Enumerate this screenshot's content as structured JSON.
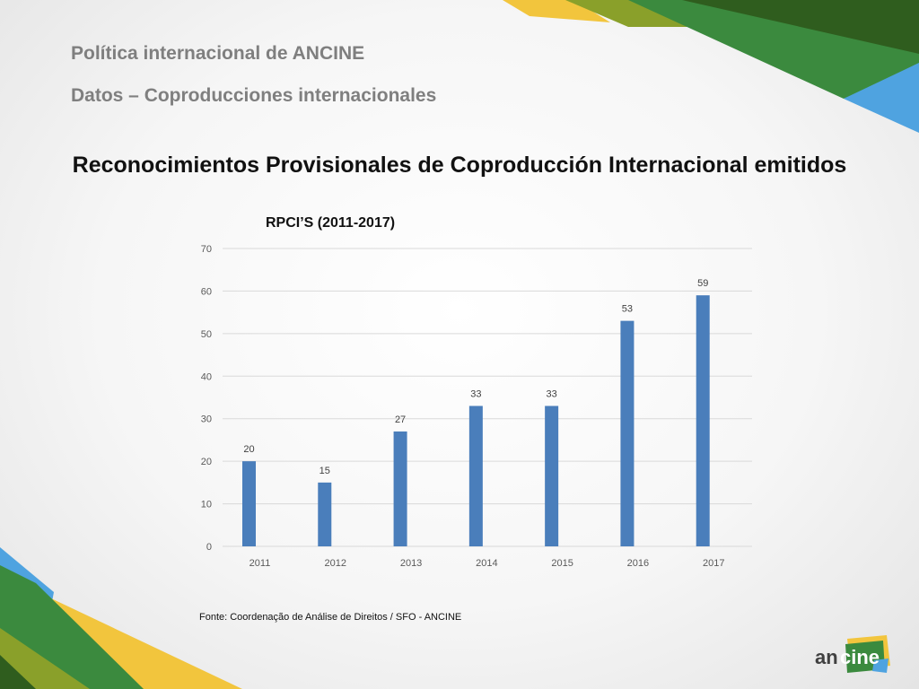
{
  "header": {
    "line1": "Política internacional de ANCINE",
    "line2": "Datos – Coproducciones internacionales"
  },
  "main_title": "Reconocimientos Provisionales de Coproducción Internacional emitidos",
  "source": "Fonte: Coordenação de Análise de Direitos / SFO - ANCINE",
  "logo": {
    "text_an": "an",
    "text_cine": "cine"
  },
  "colors": {
    "bar": "#4a7ebb",
    "dark_green": "#2f5d1e",
    "green": "#3b8a3e",
    "olive": "#8aa02a",
    "yellow": "#f2c53d",
    "blue": "#4fa3e0"
  },
  "chart_data": {
    "type": "bar",
    "title": "RPCI’S (2011-2017)",
    "categories": [
      "2011",
      "2012",
      "2013",
      "2014",
      "2015",
      "2016",
      "2017"
    ],
    "values": [
      20,
      15,
      27,
      33,
      33,
      53,
      59
    ],
    "ylim": [
      0,
      70
    ],
    "yticks": [
      0,
      10,
      20,
      30,
      40,
      50,
      60,
      70
    ],
    "xlabel": "",
    "ylabel": "",
    "grid": true,
    "legend": "none"
  }
}
